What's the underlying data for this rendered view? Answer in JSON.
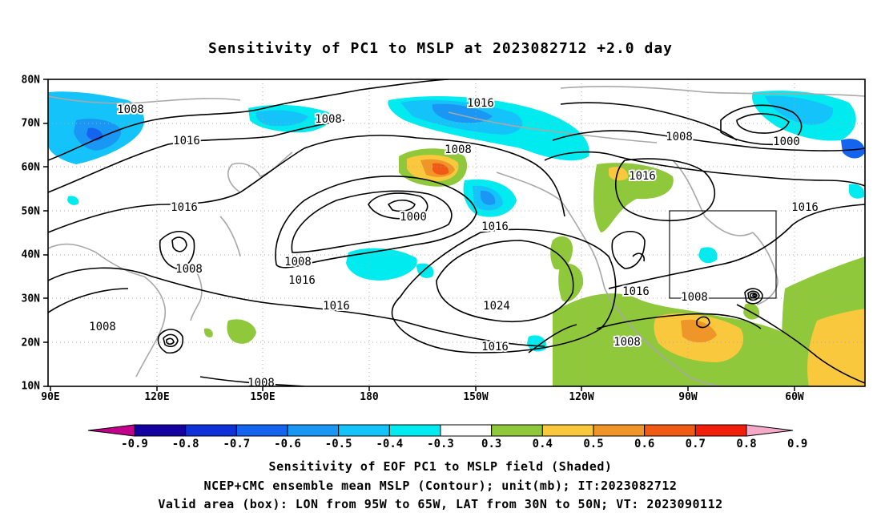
{
  "title": "Sensitivity of PC1 to MSLP at 2023082712 +2.0 day",
  "lat_labels": [
    "80N",
    "70N",
    "60N",
    "50N",
    "40N",
    "30N",
    "20N",
    "10N"
  ],
  "lon_labels": [
    "90E",
    "120E",
    "150E",
    "180",
    "150W",
    "120W",
    "90W",
    "60W"
  ],
  "contour_labels": [
    "1008",
    "1016",
    "1008",
    "1016",
    "1008",
    "1000",
    "1008",
    "1000",
    "1016",
    "1016",
    "1016",
    "1008",
    "1016",
    "1008",
    "1024",
    "1016",
    "1016",
    "1008",
    "1008",
    "1016",
    "1008",
    "1008"
  ],
  "colorbar": {
    "labels": [
      "-0.9",
      "-0.8",
      "-0.7",
      "-0.6",
      "-0.5",
      "-0.4",
      "-0.3",
      "0.3",
      "0.4",
      "0.5",
      "0.6",
      "0.7",
      "0.8",
      "0.9"
    ],
    "colors": [
      "#c2008b",
      "#1400a0",
      "#1030d8",
      "#1464f0",
      "#1a96f5",
      "#14c3fa",
      "#00ebf0",
      "#ffffff",
      "#8fc83a",
      "#fac83c",
      "#f09628",
      "#f05a14",
      "#f01e0a",
      "#f5aac8"
    ]
  },
  "captions": [
    "Sensitivity of EOF PC1 to MSLP field (Shaded)",
    "NCEP+CMC ensemble mean MSLP (Contour); unit(mb); IT:2023082712",
    "Valid area (box): LON from 95W to 65W, LAT from 30N to 50N; VT: 2023090112"
  ]
}
